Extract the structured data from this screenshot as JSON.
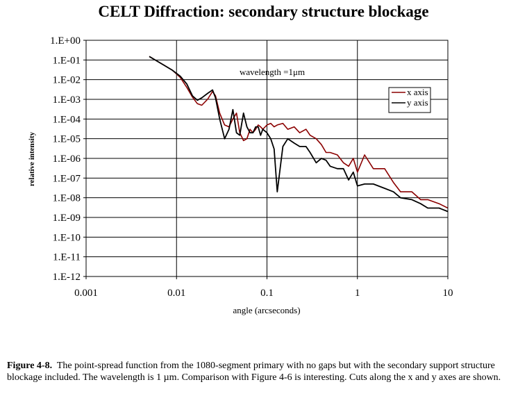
{
  "chart_data": {
    "type": "line",
    "title": "CELT Diffraction: secondary structure blockage",
    "xlabel": "angle (arcseconds)",
    "ylabel": "relative intensity",
    "x_scale": "log",
    "y_scale": "log",
    "xlim": [
      0.001,
      10
    ],
    "ylim": [
      1e-12,
      1
    ],
    "x_ticks": [
      "0.001",
      "0.01",
      "0.1",
      "1",
      "10"
    ],
    "y_ticks": [
      "1.E+00",
      "1.E-01",
      "1.E-02",
      "1.E-03",
      "1.E-04",
      "1.E-05",
      "1.E-06",
      "1.E-07",
      "1.E-08",
      "1.E-09",
      "1.E-10",
      "1.E-11",
      "1.E-12"
    ],
    "grid": true,
    "annotation": "wavelength =1μm",
    "legend_position": "upper-right",
    "series": [
      {
        "name": "x axis",
        "color": "#8b0000",
        "x": [
          0.005,
          0.007,
          0.009,
          0.011,
          0.013,
          0.015,
          0.017,
          0.019,
          0.022,
          0.025,
          0.027,
          0.03,
          0.034,
          0.038,
          0.042,
          0.046,
          0.05,
          0.055,
          0.06,
          0.065,
          0.07,
          0.075,
          0.08,
          0.085,
          0.09,
          0.1,
          0.11,
          0.12,
          0.13,
          0.15,
          0.17,
          0.2,
          0.23,
          0.27,
          0.3,
          0.35,
          0.4,
          0.45,
          0.5,
          0.6,
          0.7,
          0.8,
          0.9,
          1.0,
          1.2,
          1.5,
          2.0,
          2.5,
          3.0,
          4.0,
          5.0,
          6.0,
          8.0,
          10.0
        ],
        "y": [
          0.15,
          0.06,
          0.03,
          0.013,
          0.004,
          0.0013,
          0.0006,
          0.0005,
          0.001,
          0.0025,
          0.0015,
          0.0002,
          5e-05,
          4e-05,
          0.0001,
          0.0002,
          2e-05,
          8e-06,
          1e-05,
          3e-05,
          2e-05,
          3e-05,
          5e-05,
          4e-05,
          3e-05,
          5e-05,
          6e-05,
          4e-05,
          5e-05,
          6e-05,
          3e-05,
          4e-05,
          2e-05,
          3e-05,
          1.5e-05,
          1e-05,
          5e-06,
          2e-06,
          2e-06,
          1.5e-06,
          6e-07,
          4e-07,
          1e-06,
          2e-07,
          1.5e-06,
          3e-07,
          3e-07,
          6e-08,
          2e-08,
          2e-08,
          8e-09,
          8e-09,
          5e-09,
          3e-09
        ]
      },
      {
        "name": "y axis",
        "color": "#000000",
        "x": [
          0.005,
          0.007,
          0.009,
          0.011,
          0.013,
          0.015,
          0.017,
          0.019,
          0.022,
          0.025,
          0.027,
          0.03,
          0.034,
          0.038,
          0.042,
          0.046,
          0.05,
          0.055,
          0.06,
          0.065,
          0.07,
          0.075,
          0.08,
          0.085,
          0.09,
          0.1,
          0.11,
          0.12,
          0.13,
          0.15,
          0.17,
          0.2,
          0.23,
          0.27,
          0.3,
          0.35,
          0.4,
          0.45,
          0.5,
          0.6,
          0.7,
          0.8,
          0.9,
          1.0,
          1.2,
          1.5,
          2.0,
          2.5,
          3.0,
          4.0,
          5.0,
          6.0,
          8.0,
          10.0
        ],
        "y": [
          0.15,
          0.06,
          0.03,
          0.015,
          0.006,
          0.0015,
          0.0009,
          0.0012,
          0.002,
          0.003,
          0.0012,
          0.0001,
          1e-05,
          3e-05,
          0.0003,
          2e-05,
          1.5e-05,
          0.0002,
          4e-05,
          2e-05,
          2e-05,
          4e-05,
          4e-05,
          1.5e-05,
          3e-05,
          2e-05,
          1e-05,
          3e-06,
          2e-08,
          4e-06,
          1e-05,
          6e-06,
          4e-06,
          4e-06,
          2e-06,
          6e-07,
          1e-06,
          8e-07,
          4e-07,
          3e-07,
          3e-07,
          8e-08,
          2e-07,
          4e-08,
          5e-08,
          5e-08,
          3e-08,
          2e-08,
          1e-08,
          8e-09,
          5e-09,
          3e-09,
          3e-09,
          2e-09
        ]
      }
    ]
  },
  "caption": {
    "label": "Figure 4-8.",
    "text": "The point-spread function from the 1080-segment primary with no gaps but with the secondary support structure blockage included.  The wavelength is 1 µm.  Comparison with Figure 4-6 is interesting.  Cuts along the x and y axes are shown."
  }
}
